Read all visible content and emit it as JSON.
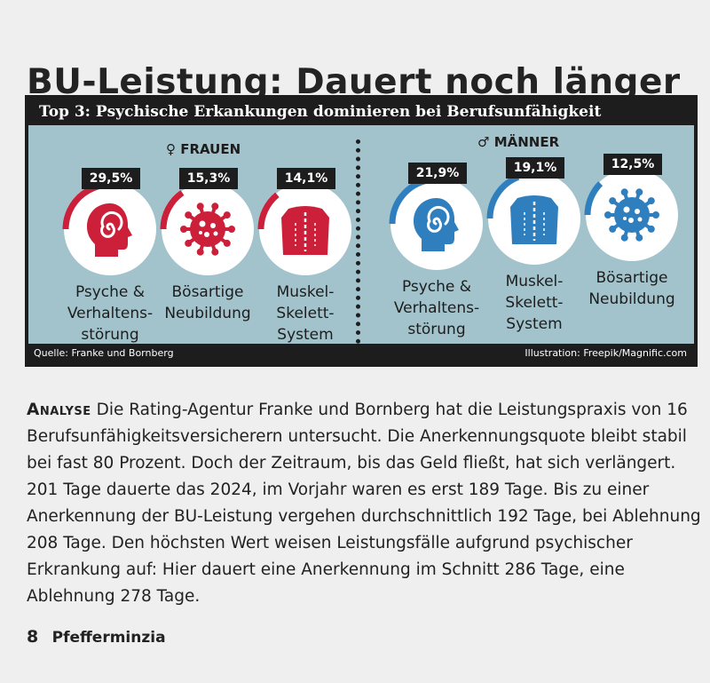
{
  "page_title": "BU-Leistung: Dauert noch länger",
  "infobox": {
    "header": "Top 3: Psychische Erkankungen dominieren bei Berufsunfähigkeit",
    "women": {
      "symbol": "♀",
      "label": "FRAUEN",
      "items": [
        {
          "percent": "29,5%",
          "value": 29.5,
          "label": "Psyche &\nVerhaltens-\nstörung",
          "icon": "head-spiral-icon"
        },
        {
          "percent": "15,3%",
          "value": 15.3,
          "label": "Bösartige\nNeubildung",
          "icon": "cell-icon"
        },
        {
          "percent": "14,1%",
          "value": 14.1,
          "label": "Muskel-\nSkelett-\nSystem",
          "icon": "torso-spine-icon"
        }
      ]
    },
    "men": {
      "symbol": "♂",
      "label": "MÄNNER",
      "items": [
        {
          "percent": "21,9%",
          "value": 21.9,
          "label": "Psyche &\nVerhaltens-\nstörung",
          "icon": "head-spiral-icon"
        },
        {
          "percent": "19,1%",
          "value": 19.1,
          "label": "Muskel-\nSkelett-\nSystem",
          "icon": "torso-spine-icon"
        },
        {
          "percent": "12,5%",
          "value": 12.5,
          "label": "Bösartige\nNeubildung",
          "icon": "cell-icon"
        }
      ]
    },
    "source": "Quelle: Franke und Bornberg",
    "credit": "Illustration: Freepik/Magnific.com",
    "colors": {
      "women": "#cc1f3a",
      "men": "#2f7fbf",
      "background": "#a3c3cc"
    }
  },
  "article": {
    "lead": "Analyse",
    "text": " Die Rating-Agentur Franke und Bornberg hat die Leistungspraxis von 16 Berufsunfähigkeitsversicherern untersucht. Die Anerkennungsquote bleibt stabil bei fast 80 Prozent. Doch der Zeitraum, bis das Geld fließt, hat sich verlängert. 201 Tage dauerte das 2024, im Vorjahr waren es erst 189 Tage. Bis zu einer Anerkennung der BU-Leistung vergehen durchschnittlich 192 Tage, bei Ablehnung 208 Tage. Den höchsten Wert weisen Leistungsfälle aufgrund psychischer Erkrankung auf: Hier dauert eine Anerkennung im Schnitt 286 Tage, eine Ablehnung 278 Tage."
  },
  "footer": {
    "page_number": "8",
    "magazine": "Pfefferminzia"
  }
}
